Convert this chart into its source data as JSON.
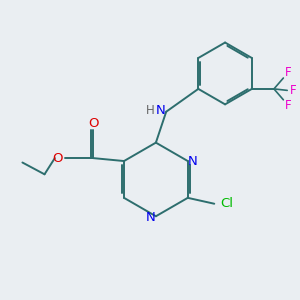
{
  "background_color": "#eaeef2",
  "bond_color": "#2d6e6e",
  "nitrogen_color": "#0000ee",
  "oxygen_color": "#dd0000",
  "chlorine_color": "#00bb00",
  "fluorine_color": "#ee00cc",
  "figsize": [
    3.0,
    3.0
  ],
  "dpi": 100,
  "xlim": [
    0,
    10
  ],
  "ylim": [
    0,
    10
  ]
}
